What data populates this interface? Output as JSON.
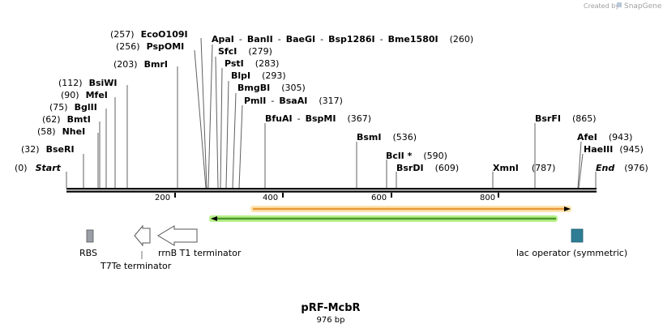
{
  "credit": "Created by",
  "credit_brand": "SnapGene",
  "plasmid": {
    "name": "pRF-McbR",
    "length_label": "976 bp",
    "length": 976
  },
  "ruler": {
    "ticks": [
      "200",
      "400",
      "600",
      "800"
    ]
  },
  "sites": [
    {
      "name": "Start",
      "pos": "(0)"
    },
    {
      "name": "BseRI",
      "pos": "(32)"
    },
    {
      "name": "NheI",
      "pos": "(58)"
    },
    {
      "name": "BmtI",
      "pos": "(62)"
    },
    {
      "name": "BglII",
      "pos": "(75)"
    },
    {
      "name": "MfeI",
      "pos": "(90)"
    },
    {
      "name": "BsiWI",
      "pos": "(112)"
    },
    {
      "name": "BmrI",
      "pos": "(203)"
    },
    {
      "name": "PspOMI",
      "pos": "(256)"
    },
    {
      "name": "EcoO109I",
      "pos": "(257)"
    },
    {
      "name": "ApaI",
      "sep1": "-",
      "name2": "BanII",
      "sep2": "-",
      "name3": "BaeGI",
      "sep3": "-",
      "name4": "Bsp1286I",
      "sep4": "-",
      "name5": "Bme1580I",
      "pos": "(260)"
    },
    {
      "name": "SfcI",
      "pos": "(279)"
    },
    {
      "name": "PstI",
      "pos": "(283)"
    },
    {
      "name": "BlpI",
      "pos": "(293)"
    },
    {
      "name": "BmgBI",
      "pos": "(305)"
    },
    {
      "name": "PmlI",
      "sep1": "-",
      "name2": "BsaAI",
      "pos": "(317)"
    },
    {
      "name": "BfuAI",
      "sep1": "-",
      "name2": "BspMI",
      "pos": "(367)"
    },
    {
      "name": "BsmI",
      "pos": "(536)"
    },
    {
      "name": "BclI *",
      "pos": "(590)"
    },
    {
      "name": "BsrDI",
      "pos": "(609)"
    },
    {
      "name": "XmnI",
      "pos": "(787)"
    },
    {
      "name": "BsrFI",
      "pos": "(865)"
    },
    {
      "name": "AfeI",
      "pos": "(943)"
    },
    {
      "name": "HaeIII",
      "pos": "(945)"
    },
    {
      "name": "End",
      "pos": "(976)"
    }
  ],
  "features": [
    {
      "name": "RBS",
      "color": "#9a9ea6"
    },
    {
      "name": "T7Te terminator",
      "color": "#ffffff"
    },
    {
      "name": "rrnB T1 terminator",
      "color": "#ffffff"
    },
    {
      "name": "lac operator (symmetric)",
      "color": "#2e7d94"
    }
  ],
  "orf_colors": {
    "forward": "#e89a3c",
    "reverse": "#4a9a2a",
    "reverse_glow": "#b8f08a",
    "forward_glow": "#fde4b0"
  }
}
